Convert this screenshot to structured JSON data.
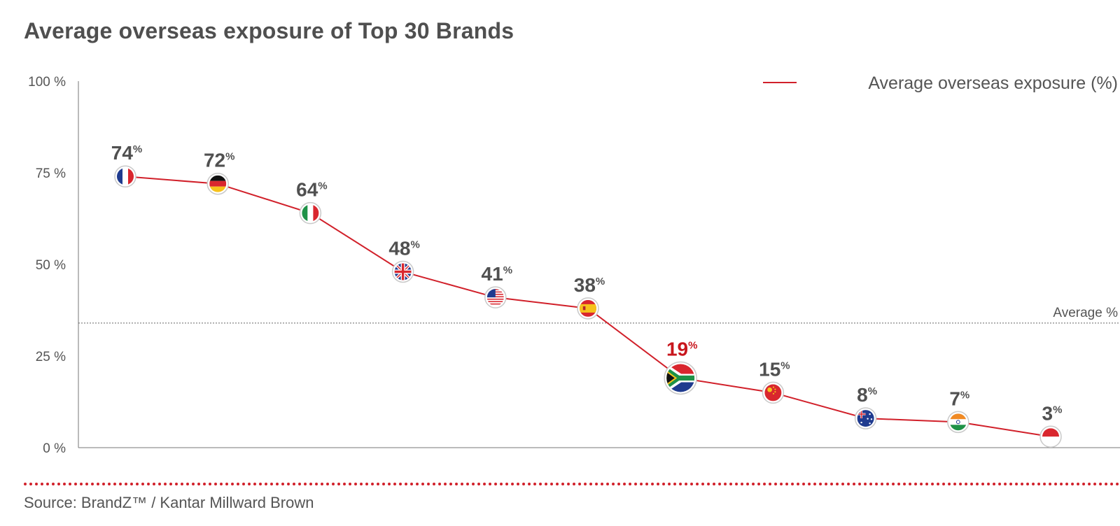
{
  "title": "Average overseas exposure of Top 30 Brands",
  "source": "Source: BrandZ™ / Kantar Millward Brown",
  "colors": {
    "line": "#d1202a",
    "highlight": "#c8161d",
    "axis": "#555555"
  },
  "chart_data": {
    "type": "line",
    "title": "Average overseas exposure of Top 30 Brands",
    "xlabel": "",
    "ylabel": "",
    "ylim": [
      0,
      100
    ],
    "y_ticks": [
      "0 %",
      "25 %",
      "50 %",
      "75 %",
      "100 %"
    ],
    "y_tick_values": [
      0,
      25,
      50,
      75,
      100
    ],
    "legend": {
      "label": "Average overseas exposure (%)",
      "position": "top-right"
    },
    "average_line": {
      "label": "Average %",
      "value": 34
    },
    "categories": [
      "France",
      "Germany",
      "Italy",
      "United Kingdom",
      "United States",
      "Spain",
      "South Africa",
      "China",
      "Australia",
      "India",
      "Indonesia"
    ],
    "flag_icons": [
      "flag-france-icon",
      "flag-germany-icon",
      "flag-italy-icon",
      "flag-uk-icon",
      "flag-usa-icon",
      "flag-spain-icon",
      "flag-south-africa-icon",
      "flag-china-icon",
      "flag-australia-icon",
      "flag-india-icon",
      "flag-indonesia-icon"
    ],
    "values": [
      74,
      72,
      64,
      48,
      41,
      38,
      19,
      15,
      8,
      7,
      3
    ],
    "point_labels": [
      "74",
      "72",
      "64",
      "48",
      "41",
      "38",
      "19",
      "15",
      "8",
      "7",
      "3"
    ],
    "label_unit": "%",
    "highlight_index": 6
  }
}
